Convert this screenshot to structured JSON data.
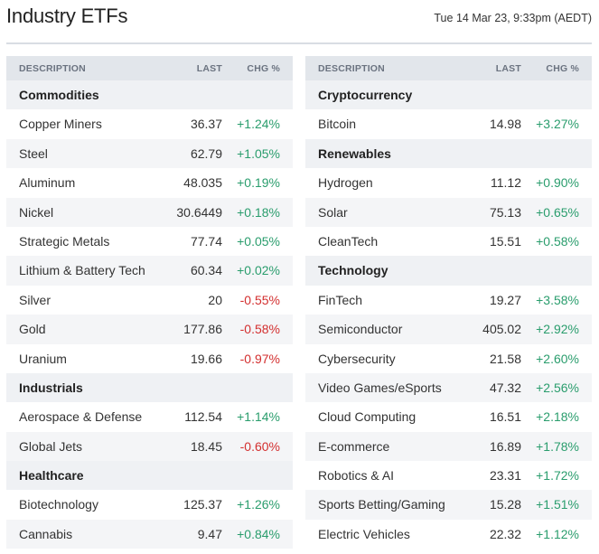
{
  "page": {
    "title": "Industry ETFs",
    "timestamp": "Tue 14 Mar 23, 9:33pm (AEDT)"
  },
  "headers": {
    "description": "DESCRIPTION",
    "last": "LAST",
    "chg": "CHG %"
  },
  "left": [
    {
      "type": "category",
      "name": "Commodities"
    },
    {
      "type": "row",
      "name": "Copper Miners",
      "last": "36.37",
      "chg": "+1.24%"
    },
    {
      "type": "row",
      "name": "Steel",
      "last": "62.79",
      "chg": "+1.05%"
    },
    {
      "type": "row",
      "name": "Aluminum",
      "last": "48.035",
      "chg": "+0.19%"
    },
    {
      "type": "row",
      "name": "Nickel",
      "last": "30.6449",
      "chg": "+0.18%"
    },
    {
      "type": "row",
      "name": "Strategic Metals",
      "last": "77.74",
      "chg": "+0.05%"
    },
    {
      "type": "row",
      "name": "Lithium & Battery Tech",
      "last": "60.34",
      "chg": "+0.02%"
    },
    {
      "type": "row",
      "name": "Silver",
      "last": "20",
      "chg": "-0.55%"
    },
    {
      "type": "row",
      "name": "Gold",
      "last": "177.86",
      "chg": "-0.58%"
    },
    {
      "type": "row",
      "name": "Uranium",
      "last": "19.66",
      "chg": "-0.97%"
    },
    {
      "type": "category",
      "name": "Industrials"
    },
    {
      "type": "row",
      "name": "Aerospace & Defense",
      "last": "112.54",
      "chg": "+1.14%"
    },
    {
      "type": "row",
      "name": "Global Jets",
      "last": "18.45",
      "chg": "-0.60%"
    },
    {
      "type": "category",
      "name": "Healthcare"
    },
    {
      "type": "row",
      "name": "Biotechnology",
      "last": "125.37",
      "chg": "+1.26%"
    },
    {
      "type": "row",
      "name": "Cannabis",
      "last": "9.47",
      "chg": "+0.84%"
    }
  ],
  "right": [
    {
      "type": "category",
      "name": "Cryptocurrency"
    },
    {
      "type": "row",
      "name": "Bitcoin",
      "last": "14.98",
      "chg": "+3.27%"
    },
    {
      "type": "category",
      "name": "Renewables"
    },
    {
      "type": "row",
      "name": "Hydrogen",
      "last": "11.12",
      "chg": "+0.90%"
    },
    {
      "type": "row",
      "name": "Solar",
      "last": "75.13",
      "chg": "+0.65%"
    },
    {
      "type": "row",
      "name": "CleanTech",
      "last": "15.51",
      "chg": "+0.58%"
    },
    {
      "type": "category",
      "name": "Technology"
    },
    {
      "type": "row",
      "name": "FinTech",
      "last": "19.27",
      "chg": "+3.58%"
    },
    {
      "type": "row",
      "name": "Semiconductor",
      "last": "405.02",
      "chg": "+2.92%"
    },
    {
      "type": "row",
      "name": "Cybersecurity",
      "last": "21.58",
      "chg": "+2.60%"
    },
    {
      "type": "row",
      "name": "Video Games/eSports",
      "last": "47.32",
      "chg": "+2.56%"
    },
    {
      "type": "row",
      "name": "Cloud Computing",
      "last": "16.51",
      "chg": "+2.18%"
    },
    {
      "type": "row",
      "name": "E-commerce",
      "last": "16.89",
      "chg": "+1.78%"
    },
    {
      "type": "row",
      "name": "Robotics & AI",
      "last": "23.31",
      "chg": "+1.72%"
    },
    {
      "type": "row",
      "name": "Sports Betting/Gaming",
      "last": "15.28",
      "chg": "+1.51%"
    },
    {
      "type": "row",
      "name": "Electric Vehicles",
      "last": "22.32",
      "chg": "+1.12%"
    }
  ],
  "colors": {
    "positive": "#2a9d6d",
    "negative": "#d32f2f",
    "header_bg": "#e2e6eb",
    "category_bg": "#eff1f4",
    "alt_row_bg": "#f4f5f7"
  }
}
